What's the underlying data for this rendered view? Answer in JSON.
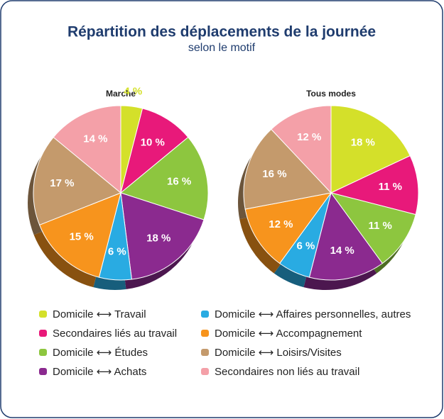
{
  "header": {
    "title": "Répartition des déplacements de la journée",
    "subtitle": "selon le motif"
  },
  "chart_data": [
    {
      "type": "pie",
      "title": "Marche",
      "categories": [
        "Domicile ⟷ Travail",
        "Secondaires liés au travail",
        "Domicile ⟷ Études",
        "Domicile ⟷ Achats",
        "Domicile ⟷ Affaires personnelles, autres",
        "Domicile ⟷ Accompagnement",
        "Domicile ⟷ Loisirs/Visites",
        "Secondaires non liés au travail"
      ],
      "values": [
        4,
        10,
        16,
        18,
        6,
        15,
        17,
        14
      ],
      "value_labels": [
        "4 %",
        "10 %",
        "16 %",
        "18 %",
        "6 %",
        "15 %",
        "17 %",
        "14 %"
      ],
      "colors": [
        "#d4e02a",
        "#e8197a",
        "#8dc63f",
        "#8b2a8f",
        "#29abe2",
        "#f7941d",
        "#c49a6c",
        "#f4a0a8"
      ]
    },
    {
      "type": "pie",
      "title": "Tous modes",
      "categories": [
        "Domicile ⟷ Travail",
        "Secondaires liés au travail",
        "Domicile ⟷ Études",
        "Domicile ⟷ Achats",
        "Domicile ⟷ Affaires personnelles, autres",
        "Domicile ⟷ Accompagnement",
        "Domicile ⟷ Loisirs/Visites",
        "Secondaires non liés au travail"
      ],
      "values": [
        18,
        11,
        11,
        14,
        6,
        12,
        16,
        12
      ],
      "value_labels": [
        "18 %",
        "11 %",
        "11 %",
        "14 %",
        "6 %",
        "12 %",
        "16 %",
        "12 %"
      ],
      "colors": [
        "#d4e02a",
        "#e8197a",
        "#8dc63f",
        "#8b2a8f",
        "#29abe2",
        "#f7941d",
        "#c49a6c",
        "#f4a0a8"
      ]
    }
  ]
}
